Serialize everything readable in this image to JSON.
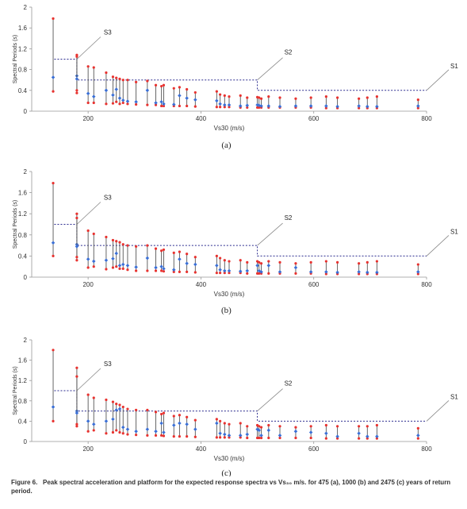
{
  "caption": {
    "label": "Figure 6.",
    "text": "Peak spectral acceleration and platform for the expected response spectra vs Vs₃₀ m/s. for 475 (a), 1000 (b) and 2475 (c) years of return period."
  },
  "colors": {
    "bar": "#555555",
    "top": "#e8322f",
    "bottom": "#e8322f",
    "mean": "#3a6fd6",
    "platform": "#2b2b8f",
    "leader": "#888888",
    "axis": "#999999"
  },
  "chart_data": [
    {
      "type": "scatter",
      "panel_label": "(a)",
      "xlabel": "Vs30 (m/s)",
      "ylabel": "Spectral Periods (s)",
      "xlim": [
        100,
        800
      ],
      "ylim": [
        0,
        2
      ],
      "xticks": [
        "200",
        "400",
        "600",
        "800"
      ],
      "yticks": [
        "0",
        "0.4",
        "0.8",
        "1.2",
        "1.6",
        "2"
      ],
      "site_labels": [
        "S3",
        "S2",
        "S1"
      ],
      "platform": {
        "x": [
          140,
          180,
          180,
          500,
          500,
          800
        ],
        "y": [
          1.0,
          1.0,
          0.6,
          0.6,
          0.4,
          0.4
        ]
      },
      "points": [
        {
          "x": 138,
          "min": 0.38,
          "mean": 0.65,
          "max": 1.78
        },
        {
          "x": 180,
          "min": 0.35,
          "mean": 0.68,
          "max": 1.08
        },
        {
          "x": 180,
          "min": 0.4,
          "mean": 0.62,
          "max": 1.05
        },
        {
          "x": 200,
          "min": 0.16,
          "mean": 0.34,
          "max": 0.86
        },
        {
          "x": 210,
          "min": 0.16,
          "mean": 0.28,
          "max": 0.84
        },
        {
          "x": 232,
          "min": 0.14,
          "mean": 0.4,
          "max": 0.74
        },
        {
          "x": 244,
          "min": 0.15,
          "mean": 0.31,
          "max": 0.66
        },
        {
          "x": 250,
          "min": 0.18,
          "mean": 0.42,
          "max": 0.64
        },
        {
          "x": 256,
          "min": 0.14,
          "mean": 0.25,
          "max": 0.62
        },
        {
          "x": 262,
          "min": 0.16,
          "mean": 0.21,
          "max": 0.6
        },
        {
          "x": 270,
          "min": 0.14,
          "mean": 0.19,
          "max": 0.6
        },
        {
          "x": 285,
          "min": 0.13,
          "mean": 0.18,
          "max": 0.56
        },
        {
          "x": 305,
          "min": 0.12,
          "mean": 0.4,
          "max": 0.58
        },
        {
          "x": 320,
          "min": 0.12,
          "mean": 0.16,
          "max": 0.5
        },
        {
          "x": 330,
          "min": 0.1,
          "mean": 0.18,
          "max": 0.48
        },
        {
          "x": 334,
          "min": 0.1,
          "mean": 0.14,
          "max": 0.5
        },
        {
          "x": 352,
          "min": 0.1,
          "mean": 0.13,
          "max": 0.44
        },
        {
          "x": 362,
          "min": 0.1,
          "mean": 0.3,
          "max": 0.46
        },
        {
          "x": 375,
          "min": 0.1,
          "mean": 0.25,
          "max": 0.42
        },
        {
          "x": 390,
          "min": 0.09,
          "mean": 0.22,
          "max": 0.36
        },
        {
          "x": 428,
          "min": 0.08,
          "mean": 0.2,
          "max": 0.38
        },
        {
          "x": 434,
          "min": 0.08,
          "mean": 0.14,
          "max": 0.32
        },
        {
          "x": 442,
          "min": 0.08,
          "mean": 0.12,
          "max": 0.3
        },
        {
          "x": 450,
          "min": 0.08,
          "mean": 0.12,
          "max": 0.28
        },
        {
          "x": 470,
          "min": 0.07,
          "mean": 0.1,
          "max": 0.3
        },
        {
          "x": 482,
          "min": 0.07,
          "mean": 0.11,
          "max": 0.26
        },
        {
          "x": 500,
          "min": 0.07,
          "mean": 0.12,
          "max": 0.27
        },
        {
          "x": 503,
          "min": 0.07,
          "mean": 0.11,
          "max": 0.26
        },
        {
          "x": 507,
          "min": 0.07,
          "mean": 0.1,
          "max": 0.24
        },
        {
          "x": 520,
          "min": 0.07,
          "mean": 0.1,
          "max": 0.28
        },
        {
          "x": 540,
          "min": 0.07,
          "mean": 0.09,
          "max": 0.26
        },
        {
          "x": 568,
          "min": 0.07,
          "mean": 0.1,
          "max": 0.24
        },
        {
          "x": 595,
          "min": 0.07,
          "mean": 0.1,
          "max": 0.26
        },
        {
          "x": 622,
          "min": 0.06,
          "mean": 0.1,
          "max": 0.28
        },
        {
          "x": 642,
          "min": 0.06,
          "mean": 0.09,
          "max": 0.26
        },
        {
          "x": 680,
          "min": 0.06,
          "mean": 0.1,
          "max": 0.24
        },
        {
          "x": 695,
          "min": 0.06,
          "mean": 0.09,
          "max": 0.26
        },
        {
          "x": 712,
          "min": 0.06,
          "mean": 0.09,
          "max": 0.28
        },
        {
          "x": 785,
          "min": 0.06,
          "mean": 0.1,
          "max": 0.22
        }
      ]
    },
    {
      "type": "scatter",
      "panel_label": "(b)",
      "xlabel": "Vs30 (m/s)",
      "ylabel": "Spectral Periods (s)",
      "xlim": [
        100,
        800
      ],
      "ylim": [
        0,
        2
      ],
      "xticks": [
        "200",
        "400",
        "600",
        "800"
      ],
      "yticks": [
        "0",
        "0.4",
        "0.8",
        "1.2",
        "1.6",
        "2"
      ],
      "site_labels": [
        "S3",
        "S2",
        "S1"
      ],
      "platform": {
        "x": [
          140,
          180,
          180,
          500,
          500,
          800
        ],
        "y": [
          1.0,
          1.0,
          0.6,
          0.6,
          0.4,
          0.4
        ]
      },
      "points": [
        {
          "x": 138,
          "min": 0.4,
          "mean": 0.65,
          "max": 1.78
        },
        {
          "x": 180,
          "min": 0.32,
          "mean": 0.62,
          "max": 1.2
        },
        {
          "x": 180,
          "min": 0.38,
          "mean": 0.58,
          "max": 1.12
        },
        {
          "x": 200,
          "min": 0.18,
          "mean": 0.34,
          "max": 0.88
        },
        {
          "x": 210,
          "min": 0.2,
          "mean": 0.3,
          "max": 0.82
        },
        {
          "x": 232,
          "min": 0.15,
          "mean": 0.32,
          "max": 0.76
        },
        {
          "x": 244,
          "min": 0.18,
          "mean": 0.35,
          "max": 0.7
        },
        {
          "x": 250,
          "min": 0.2,
          "mean": 0.45,
          "max": 0.68
        },
        {
          "x": 256,
          "min": 0.16,
          "mean": 0.22,
          "max": 0.66
        },
        {
          "x": 262,
          "min": 0.16,
          "mean": 0.24,
          "max": 0.62
        },
        {
          "x": 270,
          "min": 0.14,
          "mean": 0.22,
          "max": 0.6
        },
        {
          "x": 285,
          "min": 0.12,
          "mean": 0.19,
          "max": 0.58
        },
        {
          "x": 305,
          "min": 0.12,
          "mean": 0.36,
          "max": 0.6
        },
        {
          "x": 320,
          "min": 0.12,
          "mean": 0.18,
          "max": 0.54
        },
        {
          "x": 330,
          "min": 0.12,
          "mean": 0.2,
          "max": 0.5
        },
        {
          "x": 334,
          "min": 0.11,
          "mean": 0.16,
          "max": 0.52
        },
        {
          "x": 352,
          "min": 0.1,
          "mean": 0.14,
          "max": 0.46
        },
        {
          "x": 362,
          "min": 0.1,
          "mean": 0.34,
          "max": 0.48
        },
        {
          "x": 375,
          "min": 0.1,
          "mean": 0.26,
          "max": 0.44
        },
        {
          "x": 390,
          "min": 0.09,
          "mean": 0.24,
          "max": 0.38
        },
        {
          "x": 428,
          "min": 0.08,
          "mean": 0.22,
          "max": 0.4
        },
        {
          "x": 434,
          "min": 0.08,
          "mean": 0.14,
          "max": 0.36
        },
        {
          "x": 442,
          "min": 0.08,
          "mean": 0.12,
          "max": 0.32
        },
        {
          "x": 450,
          "min": 0.08,
          "mean": 0.12,
          "max": 0.3
        },
        {
          "x": 470,
          "min": 0.08,
          "mean": 0.11,
          "max": 0.32
        },
        {
          "x": 482,
          "min": 0.07,
          "mean": 0.12,
          "max": 0.28
        },
        {
          "x": 500,
          "min": 0.07,
          "mean": 0.22,
          "max": 0.3
        },
        {
          "x": 503,
          "min": 0.07,
          "mean": 0.12,
          "max": 0.28
        },
        {
          "x": 507,
          "min": 0.07,
          "mean": 0.1,
          "max": 0.26
        },
        {
          "x": 520,
          "min": 0.07,
          "mean": 0.22,
          "max": 0.3
        },
        {
          "x": 540,
          "min": 0.07,
          "mean": 0.1,
          "max": 0.28
        },
        {
          "x": 568,
          "min": 0.07,
          "mean": 0.18,
          "max": 0.26
        },
        {
          "x": 595,
          "min": 0.07,
          "mean": 0.1,
          "max": 0.28
        },
        {
          "x": 622,
          "min": 0.06,
          "mean": 0.1,
          "max": 0.3
        },
        {
          "x": 642,
          "min": 0.06,
          "mean": 0.09,
          "max": 0.28
        },
        {
          "x": 680,
          "min": 0.06,
          "mean": 0.1,
          "max": 0.26
        },
        {
          "x": 695,
          "min": 0.06,
          "mean": 0.09,
          "max": 0.28
        },
        {
          "x": 712,
          "min": 0.06,
          "mean": 0.09,
          "max": 0.3
        },
        {
          "x": 785,
          "min": 0.06,
          "mean": 0.1,
          "max": 0.24
        }
      ]
    },
    {
      "type": "scatter",
      "panel_label": "(c)",
      "xlabel": "Vs30 (m/s)",
      "ylabel": "Spectral Periods (s)",
      "xlim": [
        100,
        800
      ],
      "ylim": [
        0,
        2
      ],
      "xticks": [
        "200",
        "400",
        "600",
        "800"
      ],
      "yticks": [
        "0",
        "0.4",
        "0.8",
        "1.2",
        "1.6",
        "2"
      ],
      "site_labels": [
        "S3",
        "S2",
        "S1"
      ],
      "platform": {
        "x": [
          140,
          180,
          180,
          500,
          500,
          800
        ],
        "y": [
          1.0,
          1.0,
          0.6,
          0.6,
          0.4,
          0.4
        ]
      },
      "points": [
        {
          "x": 138,
          "min": 0.4,
          "mean": 0.68,
          "max": 1.8
        },
        {
          "x": 180,
          "min": 0.3,
          "mean": 0.6,
          "max": 1.45
        },
        {
          "x": 180,
          "min": 0.34,
          "mean": 0.56,
          "max": 1.28
        },
        {
          "x": 200,
          "min": 0.2,
          "mean": 0.4,
          "max": 0.92
        },
        {
          "x": 210,
          "min": 0.22,
          "mean": 0.34,
          "max": 0.86
        },
        {
          "x": 232,
          "min": 0.16,
          "mean": 0.4,
          "max": 0.82
        },
        {
          "x": 244,
          "min": 0.18,
          "mean": 0.44,
          "max": 0.78
        },
        {
          "x": 250,
          "min": 0.22,
          "mean": 0.62,
          "max": 0.74
        },
        {
          "x": 256,
          "min": 0.18,
          "mean": 0.64,
          "max": 0.72
        },
        {
          "x": 262,
          "min": 0.16,
          "mean": 0.28,
          "max": 0.68
        },
        {
          "x": 270,
          "min": 0.14,
          "mean": 0.24,
          "max": 0.64
        },
        {
          "x": 285,
          "min": 0.13,
          "mean": 0.2,
          "max": 0.62
        },
        {
          "x": 305,
          "min": 0.12,
          "mean": 0.24,
          "max": 0.62
        },
        {
          "x": 320,
          "min": 0.12,
          "mean": 0.2,
          "max": 0.58
        },
        {
          "x": 330,
          "min": 0.12,
          "mean": 0.36,
          "max": 0.54
        },
        {
          "x": 334,
          "min": 0.11,
          "mean": 0.18,
          "max": 0.56
        },
        {
          "x": 352,
          "min": 0.1,
          "mean": 0.32,
          "max": 0.5
        },
        {
          "x": 362,
          "min": 0.1,
          "mean": 0.36,
          "max": 0.52
        },
        {
          "x": 375,
          "min": 0.1,
          "mean": 0.34,
          "max": 0.48
        },
        {
          "x": 390,
          "min": 0.09,
          "mean": 0.24,
          "max": 0.42
        },
        {
          "x": 428,
          "min": 0.08,
          "mean": 0.36,
          "max": 0.44
        },
        {
          "x": 434,
          "min": 0.08,
          "mean": 0.16,
          "max": 0.4
        },
        {
          "x": 442,
          "min": 0.08,
          "mean": 0.14,
          "max": 0.36
        },
        {
          "x": 450,
          "min": 0.08,
          "mean": 0.12,
          "max": 0.34
        },
        {
          "x": 470,
          "min": 0.08,
          "mean": 0.12,
          "max": 0.36
        },
        {
          "x": 482,
          "min": 0.07,
          "mean": 0.14,
          "max": 0.3
        },
        {
          "x": 500,
          "min": 0.07,
          "mean": 0.24,
          "max": 0.32
        },
        {
          "x": 503,
          "min": 0.07,
          "mean": 0.22,
          "max": 0.3
        },
        {
          "x": 507,
          "min": 0.07,
          "mean": 0.12,
          "max": 0.28
        },
        {
          "x": 520,
          "min": 0.07,
          "mean": 0.22,
          "max": 0.32
        },
        {
          "x": 540,
          "min": 0.07,
          "mean": 0.12,
          "max": 0.3
        },
        {
          "x": 568,
          "min": 0.07,
          "mean": 0.2,
          "max": 0.28
        },
        {
          "x": 595,
          "min": 0.07,
          "mean": 0.18,
          "max": 0.3
        },
        {
          "x": 622,
          "min": 0.06,
          "mean": 0.16,
          "max": 0.32
        },
        {
          "x": 642,
          "min": 0.06,
          "mean": 0.1,
          "max": 0.3
        },
        {
          "x": 680,
          "min": 0.06,
          "mean": 0.16,
          "max": 0.3
        },
        {
          "x": 695,
          "min": 0.06,
          "mean": 0.1,
          "max": 0.3
        },
        {
          "x": 712,
          "min": 0.06,
          "mean": 0.1,
          "max": 0.32
        },
        {
          "x": 785,
          "min": 0.06,
          "mean": 0.12,
          "max": 0.26
        }
      ]
    }
  ]
}
